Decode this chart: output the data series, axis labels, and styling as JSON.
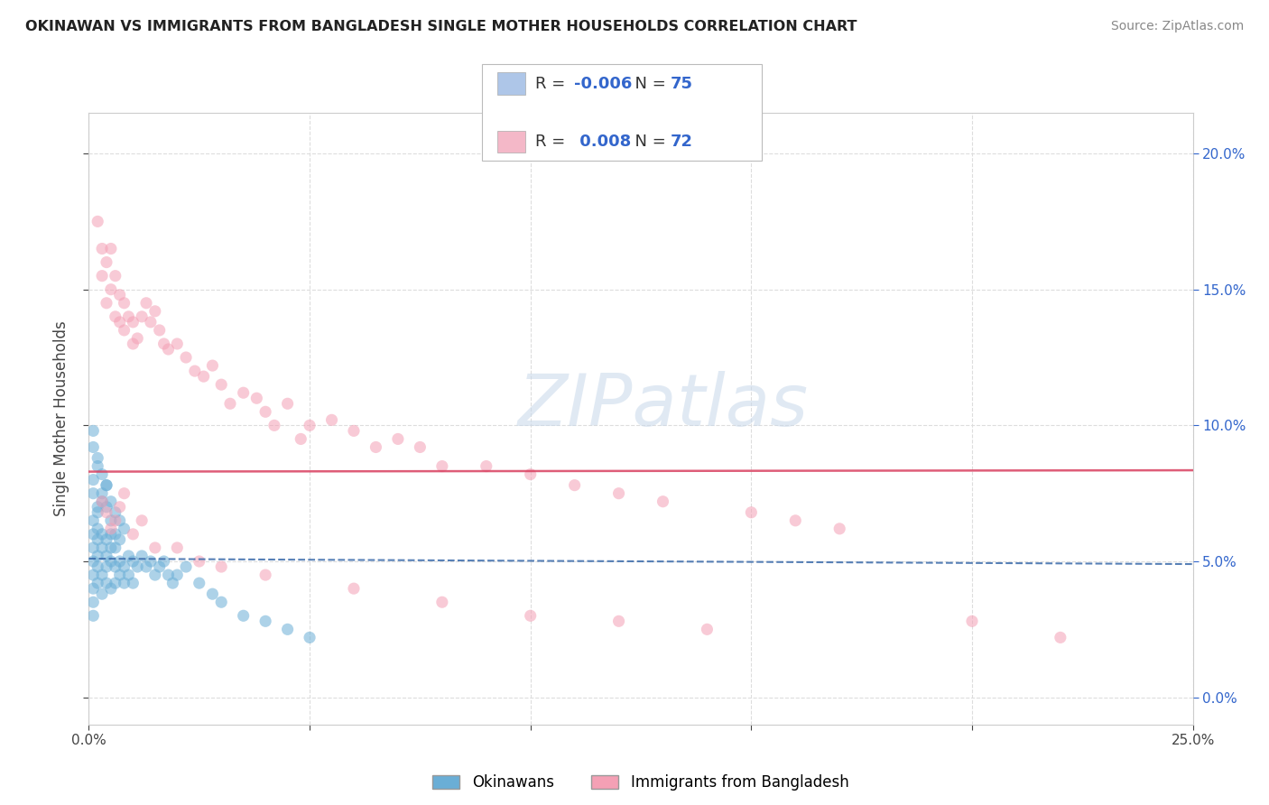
{
  "title": "OKINAWAN VS IMMIGRANTS FROM BANGLADESH SINGLE MOTHER HOUSEHOLDS CORRELATION CHART",
  "source": "Source: ZipAtlas.com",
  "ylabel": "Single Mother Households",
  "legend_1_color": "#aec6e8",
  "legend_2_color": "#f4b8c8",
  "legend_1_label": "Okinawans",
  "legend_2_label": "Immigrants from Bangladesh",
  "legend_1_R": "-0.006",
  "legend_1_N": "75",
  "legend_2_R": "0.008",
  "legend_2_N": "72",
  "xlim": [
    0.0,
    0.25
  ],
  "ylim": [
    -0.01,
    0.215
  ],
  "yticks": [
    0.0,
    0.05,
    0.1,
    0.15,
    0.2
  ],
  "ytick_labels": [
    "0.0%",
    "5.0%",
    "10.0%",
    "15.0%",
    "20.0%"
  ],
  "xticks": [
    0.0,
    0.05,
    0.1,
    0.15,
    0.2,
    0.25
  ],
  "xtick_labels": [
    "0.0%",
    "",
    "",
    "",
    "",
    "25.0%"
  ],
  "grid_color": "#dddddd",
  "blue_scatter_color": "#6aaed6",
  "pink_scatter_color": "#f4a0b5",
  "blue_line_color": "#3a6aaa",
  "pink_line_color": "#d94060",
  "blue_line_intercept": 0.051,
  "blue_line_slope": -0.008,
  "pink_line_intercept": 0.083,
  "pink_line_slope": 0.002,
  "okinawan_x": [
    0.001,
    0.001,
    0.001,
    0.001,
    0.001,
    0.001,
    0.001,
    0.001,
    0.002,
    0.002,
    0.002,
    0.002,
    0.002,
    0.003,
    0.003,
    0.003,
    0.003,
    0.004,
    0.004,
    0.004,
    0.004,
    0.005,
    0.005,
    0.005,
    0.005,
    0.006,
    0.006,
    0.006,
    0.007,
    0.007,
    0.007,
    0.008,
    0.008,
    0.009,
    0.009,
    0.01,
    0.01,
    0.011,
    0.012,
    0.013,
    0.014,
    0.015,
    0.016,
    0.017,
    0.018,
    0.019,
    0.02,
    0.022,
    0.025,
    0.028,
    0.03,
    0.035,
    0.04,
    0.045,
    0.05,
    0.001,
    0.001,
    0.002,
    0.002,
    0.003,
    0.004,
    0.005,
    0.006,
    0.007,
    0.008,
    0.001,
    0.001,
    0.002,
    0.003,
    0.004,
    0.002,
    0.003,
    0.004,
    0.005,
    0.006
  ],
  "okinawan_y": [
    0.045,
    0.05,
    0.055,
    0.06,
    0.065,
    0.04,
    0.035,
    0.03,
    0.048,
    0.052,
    0.058,
    0.062,
    0.042,
    0.055,
    0.06,
    0.045,
    0.038,
    0.048,
    0.052,
    0.058,
    0.042,
    0.05,
    0.055,
    0.06,
    0.04,
    0.048,
    0.055,
    0.042,
    0.05,
    0.058,
    0.045,
    0.048,
    0.042,
    0.052,
    0.045,
    0.05,
    0.042,
    0.048,
    0.052,
    0.048,
    0.05,
    0.045,
    0.048,
    0.05,
    0.045,
    0.042,
    0.045,
    0.048,
    0.042,
    0.038,
    0.035,
    0.03,
    0.028,
    0.025,
    0.022,
    0.075,
    0.08,
    0.085,
    0.088,
    0.082,
    0.078,
    0.072,
    0.068,
    0.065,
    0.062,
    0.092,
    0.098,
    0.07,
    0.072,
    0.07,
    0.068,
    0.075,
    0.078,
    0.065,
    0.06
  ],
  "bangladesh_x": [
    0.002,
    0.003,
    0.003,
    0.004,
    0.004,
    0.005,
    0.005,
    0.006,
    0.006,
    0.007,
    0.007,
    0.008,
    0.008,
    0.009,
    0.01,
    0.01,
    0.011,
    0.012,
    0.013,
    0.014,
    0.015,
    0.016,
    0.017,
    0.018,
    0.02,
    0.022,
    0.024,
    0.026,
    0.028,
    0.03,
    0.032,
    0.035,
    0.038,
    0.04,
    0.042,
    0.045,
    0.048,
    0.05,
    0.055,
    0.06,
    0.065,
    0.07,
    0.075,
    0.08,
    0.09,
    0.1,
    0.11,
    0.12,
    0.13,
    0.15,
    0.16,
    0.17,
    0.003,
    0.004,
    0.005,
    0.006,
    0.007,
    0.008,
    0.01,
    0.012,
    0.015,
    0.02,
    0.025,
    0.03,
    0.04,
    0.06,
    0.08,
    0.1,
    0.12,
    0.14,
    0.2,
    0.22
  ],
  "bangladesh_y": [
    0.175,
    0.155,
    0.165,
    0.145,
    0.16,
    0.15,
    0.165,
    0.14,
    0.155,
    0.148,
    0.138,
    0.145,
    0.135,
    0.14,
    0.138,
    0.13,
    0.132,
    0.14,
    0.145,
    0.138,
    0.142,
    0.135,
    0.13,
    0.128,
    0.13,
    0.125,
    0.12,
    0.118,
    0.122,
    0.115,
    0.108,
    0.112,
    0.11,
    0.105,
    0.1,
    0.108,
    0.095,
    0.1,
    0.102,
    0.098,
    0.092,
    0.095,
    0.092,
    0.085,
    0.085,
    0.082,
    0.078,
    0.075,
    0.072,
    0.068,
    0.065,
    0.062,
    0.072,
    0.068,
    0.062,
    0.065,
    0.07,
    0.075,
    0.06,
    0.065,
    0.055,
    0.055,
    0.05,
    0.048,
    0.045,
    0.04,
    0.035,
    0.03,
    0.028,
    0.025,
    0.028,
    0.022
  ]
}
